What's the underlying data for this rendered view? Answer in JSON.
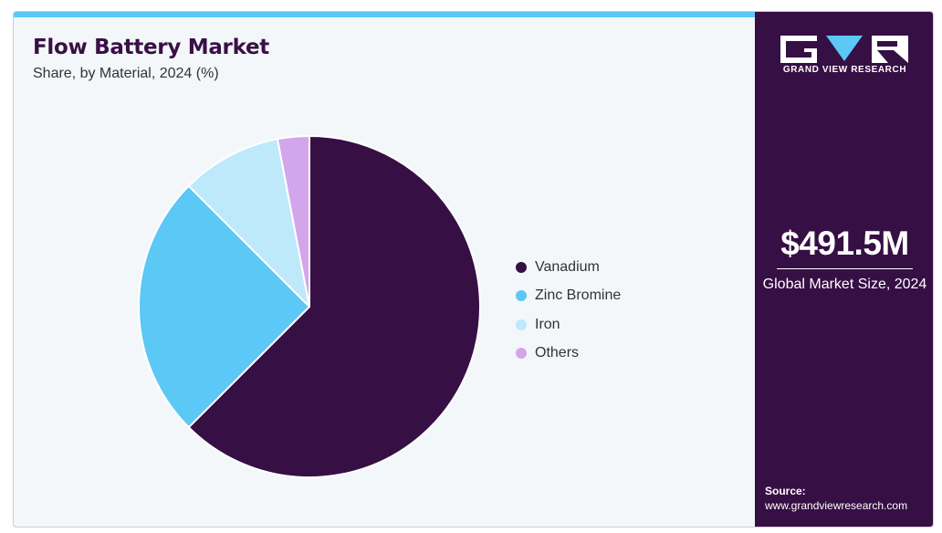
{
  "header": {
    "title": "Flow Battery Market",
    "subtitle": "Share, by Material, 2024 (%)"
  },
  "chart_data": {
    "type": "pie",
    "title": "Flow Battery Market",
    "subtitle": "Share, by Material, 2024 (%)",
    "slices": [
      {
        "name": "Vanadium",
        "value": 62.5,
        "color": "#360f44"
      },
      {
        "name": "Zinc Bromine",
        "value": 25.0,
        "color": "#5bc8f5"
      },
      {
        "name": "Iron",
        "value": 9.5,
        "color": "#bde9fb"
      },
      {
        "name": "Others",
        "value": 3.0,
        "color": "#d3a6ec"
      }
    ],
    "legend_position": "right"
  },
  "sidebar": {
    "logo_text": "GRAND VIEW RESEARCH",
    "logo_icon": "gvr-logo-icon",
    "market_size": "$491.5M",
    "market_label": "Global Market Size, 2024",
    "source_label": "Source:",
    "source_url": "www.grandviewresearch.com"
  },
  "colors": {
    "brand_dark": "#360f44",
    "accent": "#5bc8f5",
    "background": "#f3f7fa"
  }
}
